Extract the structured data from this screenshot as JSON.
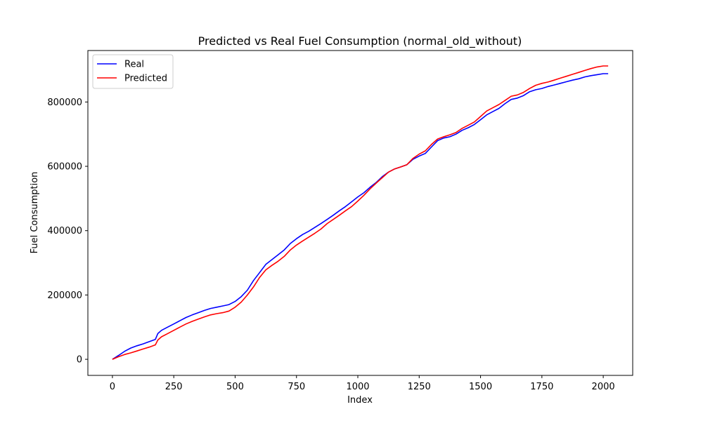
{
  "chart_data": {
    "type": "line",
    "title": "Predicted vs Real Fuel Consumption (normal_old_without)",
    "xlabel": "Index",
    "ylabel": "Fuel Consumption",
    "xlim": [
      -100,
      2120
    ],
    "ylim": [
      -50000,
      960000
    ],
    "xticks": [
      0,
      250,
      500,
      750,
      1000,
      1250,
      1500,
      1750,
      2000
    ],
    "yticks": [
      0,
      200000,
      400000,
      600000,
      800000
    ],
    "grid": false,
    "legend_position": "top-left",
    "series": [
      {
        "name": "Real",
        "color": "#0000ff",
        "x": [
          0,
          25,
          50,
          75,
          100,
          125,
          150,
          175,
          185,
          200,
          225,
          250,
          275,
          300,
          325,
          350,
          375,
          400,
          425,
          450,
          475,
          500,
          525,
          550,
          575,
          600,
          625,
          650,
          675,
          700,
          725,
          750,
          775,
          800,
          825,
          850,
          875,
          900,
          925,
          950,
          975,
          1000,
          1025,
          1050,
          1075,
          1100,
          1125,
          1150,
          1175,
          1200,
          1225,
          1250,
          1275,
          1300,
          1325,
          1350,
          1375,
          1400,
          1425,
          1450,
          1475,
          1500,
          1525,
          1550,
          1575,
          1600,
          1625,
          1650,
          1675,
          1700,
          1725,
          1750,
          1775,
          1800,
          1825,
          1850,
          1875,
          1900,
          1925,
          1950,
          1975,
          2000,
          2020
        ],
        "y": [
          0,
          12000,
          25000,
          35000,
          42000,
          48000,
          55000,
          62000,
          80000,
          90000,
          100000,
          110000,
          120000,
          130000,
          138000,
          145000,
          152000,
          158000,
          162000,
          166000,
          170000,
          180000,
          195000,
          215000,
          245000,
          270000,
          295000,
          310000,
          325000,
          340000,
          360000,
          375000,
          388000,
          398000,
          410000,
          422000,
          435000,
          448000,
          462000,
          475000,
          490000,
          505000,
          518000,
          535000,
          550000,
          568000,
          582000,
          592000,
          598000,
          605000,
          622000,
          632000,
          640000,
          660000,
          680000,
          688000,
          692000,
          700000,
          712000,
          720000,
          730000,
          745000,
          760000,
          770000,
          780000,
          795000,
          808000,
          812000,
          820000,
          832000,
          838000,
          842000,
          848000,
          853000,
          858000,
          863000,
          868000,
          872000,
          878000,
          882000,
          885000,
          888000,
          888000
        ]
      },
      {
        "name": "Predicted",
        "color": "#ff0000",
        "x": [
          0,
          25,
          50,
          75,
          100,
          125,
          150,
          175,
          185,
          200,
          225,
          250,
          275,
          300,
          325,
          350,
          375,
          400,
          425,
          450,
          475,
          500,
          525,
          550,
          575,
          600,
          625,
          650,
          675,
          700,
          725,
          750,
          775,
          800,
          825,
          850,
          875,
          900,
          925,
          950,
          975,
          1000,
          1025,
          1050,
          1075,
          1100,
          1125,
          1150,
          1175,
          1200,
          1225,
          1250,
          1275,
          1300,
          1325,
          1350,
          1375,
          1400,
          1425,
          1450,
          1475,
          1500,
          1525,
          1550,
          1575,
          1600,
          1625,
          1650,
          1675,
          1700,
          1725,
          1750,
          1775,
          1800,
          1825,
          1850,
          1875,
          1900,
          1925,
          1950,
          1975,
          2000,
          2020
        ],
        "y": [
          0,
          8000,
          15000,
          20000,
          26000,
          32000,
          38000,
          45000,
          60000,
          70000,
          80000,
          90000,
          100000,
          110000,
          118000,
          125000,
          132000,
          138000,
          142000,
          145000,
          150000,
          162000,
          178000,
          200000,
          225000,
          255000,
          278000,
          292000,
          305000,
          320000,
          340000,
          355000,
          368000,
          380000,
          392000,
          405000,
          422000,
          435000,
          448000,
          462000,
          475000,
          492000,
          510000,
          530000,
          548000,
          565000,
          582000,
          592000,
          598000,
          605000,
          625000,
          638000,
          648000,
          668000,
          685000,
          692000,
          698000,
          705000,
          718000,
          728000,
          738000,
          755000,
          772000,
          782000,
          792000,
          805000,
          818000,
          822000,
          830000,
          842000,
          852000,
          858000,
          862000,
          868000,
          874000,
          880000,
          886000,
          892000,
          898000,
          904000,
          909000,
          912000,
          912000
        ]
      }
    ]
  }
}
